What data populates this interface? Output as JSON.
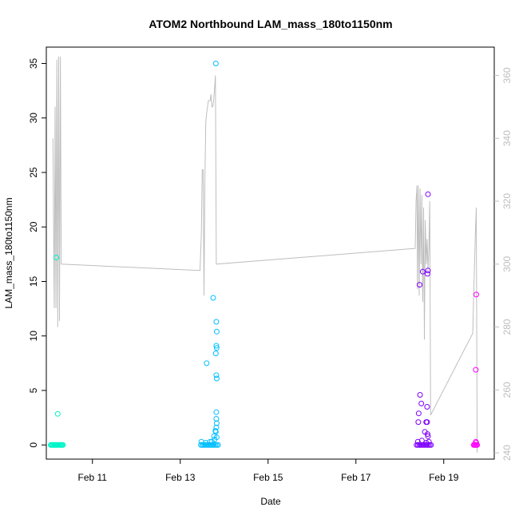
{
  "chart_data": {
    "type": "scatter",
    "title": "ATOM2 Northbound LAM_mass_180to1150nm",
    "xlabel": "Date",
    "ylabel": "LAM_mass_180to1150nm",
    "x_domain_days": [
      9.95,
      20.15
    ],
    "ylim": [
      -1.3,
      36.5
    ],
    "y2lim": [
      238,
      369
    ],
    "x_ticks": [
      {
        "day": 11,
        "label": "Feb 11"
      },
      {
        "day": 13,
        "label": "Feb 13"
      },
      {
        "day": 15,
        "label": "Feb 15"
      },
      {
        "day": 17,
        "label": "Feb 17"
      },
      {
        "day": 19,
        "label": "Feb 19"
      }
    ],
    "y_ticks": [
      0,
      5,
      10,
      15,
      20,
      25,
      30,
      35
    ],
    "y2_ticks": [
      240,
      260,
      280,
      300,
      320,
      340,
      360
    ],
    "series": [
      {
        "color": "#00f5c8",
        "points": [
          [
            10.05,
            0
          ],
          [
            10.07,
            0
          ],
          [
            10.09,
            0
          ],
          [
            10.11,
            0
          ],
          [
            10.13,
            0
          ],
          [
            10.15,
            0
          ],
          [
            10.17,
            0
          ],
          [
            10.19,
            0
          ],
          [
            10.21,
            0
          ],
          [
            10.23,
            0
          ],
          [
            10.25,
            0
          ],
          [
            10.27,
            0
          ],
          [
            10.29,
            0
          ],
          [
            10.31,
            0
          ],
          [
            10.33,
            0
          ],
          [
            10.18,
            17.2
          ],
          [
            10.21,
            2.85
          ]
        ]
      },
      {
        "color": "#00bfff",
        "points": [
          [
            13.47,
            0
          ],
          [
            13.5,
            0
          ],
          [
            13.53,
            0
          ],
          [
            13.56,
            0
          ],
          [
            13.59,
            0
          ],
          [
            13.62,
            0
          ],
          [
            13.65,
            0
          ],
          [
            13.68,
            0
          ],
          [
            13.71,
            0
          ],
          [
            13.74,
            0
          ],
          [
            13.77,
            0
          ],
          [
            13.8,
            0
          ],
          [
            13.83,
            0
          ],
          [
            13.86,
            0
          ],
          [
            13.48,
            0.3
          ],
          [
            13.58,
            0.2
          ],
          [
            13.68,
            0.3
          ],
          [
            13.78,
            0.5
          ],
          [
            13.83,
            0.7
          ],
          [
            13.72,
            0.3
          ],
          [
            13.77,
            0.8
          ],
          [
            13.8,
            1.3
          ],
          [
            13.81,
            1.2
          ],
          [
            13.82,
            1.6
          ],
          [
            13.83,
            2.0
          ],
          [
            13.82,
            2.4
          ],
          [
            13.82,
            3.0
          ],
          [
            13.83,
            6.1
          ],
          [
            13.82,
            6.4
          ],
          [
            13.81,
            8.4
          ],
          [
            13.83,
            8.9
          ],
          [
            13.82,
            9.1
          ],
          [
            13.83,
            10.4
          ],
          [
            13.82,
            11.3
          ],
          [
            13.75,
            13.5
          ],
          [
            13.6,
            7.5
          ],
          [
            13.81,
            35.0
          ]
        ]
      },
      {
        "color": "#7f00ff",
        "points": [
          [
            18.38,
            0
          ],
          [
            18.41,
            0
          ],
          [
            18.44,
            0
          ],
          [
            18.47,
            0
          ],
          [
            18.5,
            0
          ],
          [
            18.53,
            0
          ],
          [
            18.56,
            0
          ],
          [
            18.59,
            0
          ],
          [
            18.62,
            0
          ],
          [
            18.65,
            0
          ],
          [
            18.68,
            0
          ],
          [
            18.71,
            0
          ],
          [
            18.41,
            0.3
          ],
          [
            18.5,
            0.4
          ],
          [
            18.6,
            0.2
          ],
          [
            18.66,
            0.3
          ],
          [
            18.42,
            2.1
          ],
          [
            18.43,
            2.9
          ],
          [
            18.46,
            4.6
          ],
          [
            18.49,
            3.8
          ],
          [
            18.62,
            3.5
          ],
          [
            18.57,
            1.2
          ],
          [
            18.63,
            1.0
          ],
          [
            18.62,
            2.1
          ],
          [
            18.6,
            2.1
          ],
          [
            18.64,
            0.8
          ],
          [
            18.45,
            14.7
          ],
          [
            18.52,
            15.9
          ],
          [
            18.63,
            15.7
          ],
          [
            18.64,
            16.0
          ],
          [
            18.64,
            23.0
          ]
        ]
      },
      {
        "color": "#ff00ff",
        "points": [
          [
            19.68,
            0
          ],
          [
            19.7,
            0
          ],
          [
            19.72,
            0
          ],
          [
            19.74,
            0
          ],
          [
            19.76,
            0
          ],
          [
            19.73,
            0.3
          ],
          [
            19.74,
            0.2
          ],
          [
            19.73,
            6.9
          ],
          [
            19.74,
            13.8
          ]
        ]
      }
    ],
    "secondary_line": {
      "color": "#bebebe",
      "points": [
        [
          10.1,
          340
        ],
        [
          10.13,
          286
        ],
        [
          10.15,
          350
        ],
        [
          10.17,
          286
        ],
        [
          10.19,
          365
        ],
        [
          10.21,
          280
        ],
        [
          10.23,
          366
        ],
        [
          10.25,
          282
        ],
        [
          10.27,
          366
        ],
        [
          10.29,
          300
        ],
        [
          13.45,
          298
        ],
        [
          13.48,
          310
        ],
        [
          13.5,
          330
        ],
        [
          13.52,
          330
        ],
        [
          13.54,
          290
        ],
        [
          13.56,
          326
        ],
        [
          13.58,
          345
        ],
        [
          13.6,
          348
        ],
        [
          13.62,
          350
        ],
        [
          13.64,
          352
        ],
        [
          13.66,
          352
        ],
        [
          13.68,
          352
        ],
        [
          13.7,
          354
        ],
        [
          13.72,
          350
        ],
        [
          13.74,
          350
        ],
        [
          13.76,
          352
        ],
        [
          13.78,
          356
        ],
        [
          13.8,
          360
        ],
        [
          13.82,
          300
        ],
        [
          18.35,
          305
        ],
        [
          18.37,
          320
        ],
        [
          18.39,
          325
        ],
        [
          18.4,
          292
        ],
        [
          18.42,
          325
        ],
        [
          18.44,
          290
        ],
        [
          18.46,
          324
        ],
        [
          18.48,
          300
        ],
        [
          18.5,
          322
        ],
        [
          18.52,
          288
        ],
        [
          18.54,
          318
        ],
        [
          18.56,
          276
        ],
        [
          18.58,
          314
        ],
        [
          18.6,
          300
        ],
        [
          18.62,
          308
        ],
        [
          18.64,
          298
        ],
        [
          18.66,
          305
        ],
        [
          18.68,
          320
        ],
        [
          18.7,
          252
        ],
        [
          19.66,
          278
        ],
        [
          19.68,
          290
        ],
        [
          19.72,
          310
        ],
        [
          19.74,
          318
        ],
        [
          19.76,
          240
        ]
      ]
    }
  }
}
